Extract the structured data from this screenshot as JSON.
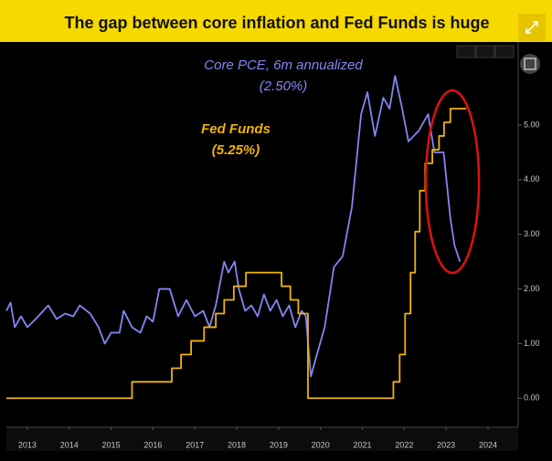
{
  "chart_data": {
    "type": "line",
    "title": "The gap between core inflation and Fed Funds is huge",
    "annotations": [
      "Core PCE, 6m annualized",
      "(2.50%)",
      "Fed Funds",
      "(5.25%)"
    ],
    "xlim": [
      2013,
      2025.22
    ],
    "ylim": [
      -0.53,
      6.52
    ],
    "xticks": [
      {
        "value": 2013.5,
        "label": "2013"
      },
      {
        "value": 2014.5,
        "label": "2014"
      },
      {
        "value": 2015.5,
        "label": "2015"
      },
      {
        "value": 2016.5,
        "label": "2016"
      },
      {
        "value": 2017.5,
        "label": "2017"
      },
      {
        "value": 2018.5,
        "label": "2018"
      },
      {
        "value": 2019.5,
        "label": "2019"
      },
      {
        "value": 2020.5,
        "label": "2020"
      },
      {
        "value": 2021.5,
        "label": "2021"
      },
      {
        "value": 2022.5,
        "label": "2022"
      },
      {
        "value": 2023.5,
        "label": "2023"
      },
      {
        "value": 2024.5,
        "label": "2024"
      }
    ],
    "yticks": [
      {
        "value": 0,
        "label": "0.00"
      },
      {
        "value": 1,
        "label": "1.00"
      },
      {
        "value": 2,
        "label": "2.00"
      },
      {
        "value": 3,
        "label": "3.00"
      },
      {
        "value": 4,
        "label": "4.00"
      },
      {
        "value": 5,
        "label": "5.00"
      }
    ],
    "grid": false,
    "series": [
      {
        "color": "#8585f2",
        "x": [
          2013.0,
          2013.1,
          2013.2,
          2013.35,
          2013.5,
          2013.7,
          2014.0,
          2014.2,
          2014.4,
          2014.6,
          2014.75,
          2015.0,
          2015.2,
          2015.35,
          2015.5,
          2015.7,
          2015.8,
          2016.0,
          2016.2,
          2016.35,
          2016.5,
          2016.65,
          2016.9,
          2017.1,
          2017.3,
          2017.5,
          2017.7,
          2017.85,
          2018.0,
          2018.1,
          2018.2,
          2018.3,
          2018.45,
          2018.55,
          2018.7,
          2018.85,
          2019.0,
          2019.15,
          2019.3,
          2019.45,
          2019.6,
          2019.75,
          2019.9,
          2020.05,
          2020.15,
          2020.27,
          2020.45,
          2020.6,
          2020.82,
          2021.03,
          2021.25,
          2021.47,
          2021.62,
          2021.8,
          2022.0,
          2022.15,
          2022.28,
          2022.45,
          2022.6,
          2022.85,
          2023.07,
          2023.22,
          2023.44,
          2023.6,
          2023.7,
          2023.83
        ],
        "values": [
          1.6,
          1.75,
          1.3,
          1.5,
          1.3,
          1.45,
          1.7,
          1.45,
          1.55,
          1.5,
          1.7,
          1.55,
          1.3,
          1.0,
          1.2,
          1.2,
          1.6,
          1.3,
          1.2,
          1.5,
          1.4,
          2.0,
          2.0,
          1.5,
          1.8,
          1.5,
          1.6,
          1.3,
          1.7,
          2.1,
          2.5,
          2.3,
          2.5,
          2.0,
          1.6,
          1.7,
          1.5,
          1.9,
          1.6,
          1.8,
          1.5,
          1.7,
          1.3,
          1.6,
          1.5,
          0.4,
          0.9,
          1.3,
          2.4,
          2.6,
          3.5,
          5.2,
          5.6,
          4.8,
          5.5,
          5.3,
          5.9,
          5.3,
          4.7,
          4.9,
          5.2,
          4.5,
          4.5,
          3.3,
          2.8,
          2.5
        ]
      },
      {
        "color": "#f0b400",
        "x": [
          2013,
          2016.0,
          2016.0,
          2016.95,
          2016.95,
          2017.17,
          2017.17,
          2017.41,
          2017.41,
          2017.72,
          2017.72,
          2018.0,
          2018.0,
          2018.2,
          2018.2,
          2018.43,
          2018.43,
          2018.72,
          2018.72,
          2019.57,
          2019.57,
          2019.78,
          2019.78,
          2019.97,
          2019.97,
          2020.2,
          2020.2,
          2022.24,
          2022.24,
          2022.39,
          2022.39,
          2022.52,
          2022.52,
          2022.65,
          2022.65,
          2022.76,
          2022.76,
          2022.87,
          2022.87,
          2023.0,
          2023.0,
          2023.17,
          2023.17,
          2023.33,
          2023.33,
          2023.45,
          2023.45,
          2023.6,
          2023.6,
          2023.98
        ],
        "values": [
          0,
          0,
          0.3,
          0.3,
          0.55,
          0.55,
          0.8,
          0.8,
          1.05,
          1.05,
          1.3,
          1.3,
          1.55,
          1.55,
          1.8,
          1.8,
          2.05,
          2.05,
          2.3,
          2.3,
          2.05,
          2.05,
          1.8,
          1.8,
          1.55,
          1.55,
          0,
          0,
          0.3,
          0.3,
          0.8,
          0.8,
          1.55,
          1.55,
          2.3,
          2.3,
          3.05,
          3.05,
          3.8,
          3.8,
          4.3,
          4.3,
          4.55,
          4.55,
          4.8,
          4.8,
          5.05,
          5.05,
          5.3,
          5.3
        ]
      }
    ]
  }
}
